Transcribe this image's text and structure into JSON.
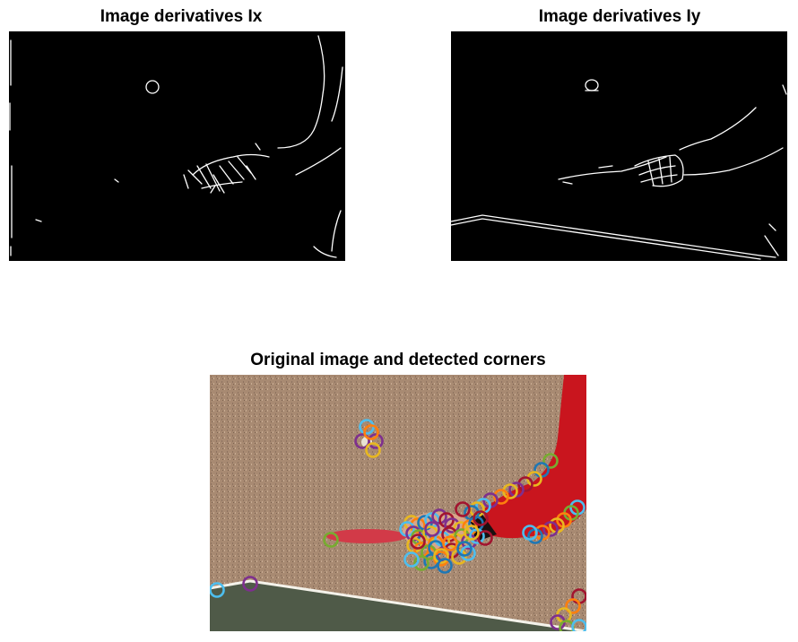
{
  "figure": {
    "panels": [
      {
        "id": "ix",
        "title": "Image derivatives Ix"
      },
      {
        "id": "iy",
        "title": "Image derivatives Iy"
      },
      {
        "id": "corners",
        "title": "Original image and detected corners"
      }
    ],
    "colors": {
      "background": "#ffffff",
      "derivative_bg": "#000000",
      "edge": "#ffffff",
      "wall": "#a88a72",
      "table": "#4f5a48",
      "arm": "#c9151e",
      "paddle": "#d23a48"
    },
    "marker_palette": [
      "#1f77b4",
      "#ff7f0e",
      "#e8b820",
      "#7e2f8e",
      "#77ac30",
      "#4dbeee",
      "#a2142f"
    ]
  }
}
